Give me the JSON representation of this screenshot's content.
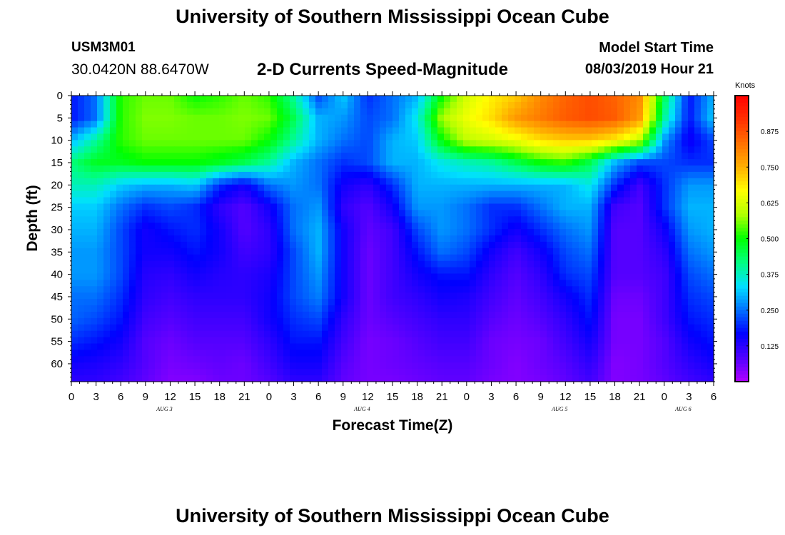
{
  "header": {
    "title": "University of Southern Mississippi Ocean Cube",
    "station_id": "USM3M01",
    "station_location": "30.0420N 88.6470W",
    "plot_title": "2-D Currents Speed-Magnitude",
    "model_start_label": "Model Start Time",
    "model_start_value": "08/03/2019 Hour 21"
  },
  "footer": {
    "title": "University of Southern Mississippi Ocean Cube"
  },
  "chart_data": {
    "type": "heatmap",
    "title": "2-D Currents Speed-Magnitude",
    "xlabel": "Forecast Time(Z)",
    "ylabel": "Depth (ft)",
    "x_tick_labels": [
      "0",
      "3",
      "6",
      "9",
      "12",
      "15",
      "18",
      "21",
      "0",
      "3",
      "6",
      "9",
      "12",
      "15",
      "18",
      "21",
      "0",
      "3",
      "6",
      "9",
      "12",
      "15",
      "18",
      "21",
      "0",
      "3",
      "6"
    ],
    "x_range_hours": [
      0,
      78
    ],
    "date_labels": [
      {
        "text": "AUG 3",
        "hour": 12
      },
      {
        "text": "AUG 4",
        "hour": 36
      },
      {
        "text": "AUG 5",
        "hour": 60
      },
      {
        "text": "AUG 6",
        "hour": 75
      }
    ],
    "y_tick_labels": [
      "0",
      "5",
      "10",
      "15",
      "20",
      "25",
      "30",
      "35",
      "40",
      "45",
      "50",
      "55",
      "60"
    ],
    "y_range_ft": [
      0,
      64
    ],
    "colorbar": {
      "unit": "Knots",
      "tick_labels": [
        "0.875",
        "0.750",
        "0.625",
        "0.500",
        "0.375",
        "0.250",
        "0.125"
      ],
      "tick_values": [
        0.875,
        0.75,
        0.625,
        0.5,
        0.375,
        0.25,
        0.125
      ],
      "range": [
        0.0,
        1.0
      ],
      "colors": [
        "#b000ff",
        "#5000ff",
        "#0000ff",
        "#0070ff",
        "#00e0ff",
        "#00ff80",
        "#00ff00",
        "#b0ff00",
        "#ffff00",
        "#ffb000",
        "#ff7000",
        "#ff3000",
        "#ff0000"
      ]
    },
    "speed_field_knots": {
      "description": "Approximate current speed (knots) sampled on a grid; rows = depth (ft), columns = forecast hour",
      "depths_ft": [
        0,
        5,
        10,
        15,
        20,
        25,
        30,
        35,
        40,
        45,
        50,
        55,
        60,
        64
      ],
      "hours": [
        0,
        3,
        6,
        9,
        12,
        15,
        18,
        21,
        24,
        27,
        30,
        33,
        36,
        39,
        42,
        45,
        48,
        51,
        54,
        57,
        60,
        63,
        66,
        69,
        72,
        75,
        78
      ],
      "values": [
        [
          0.18,
          0.25,
          0.52,
          0.55,
          0.55,
          0.5,
          0.52,
          0.55,
          0.52,
          0.4,
          0.22,
          0.32,
          0.2,
          0.25,
          0.3,
          0.5,
          0.62,
          0.68,
          0.72,
          0.8,
          0.85,
          0.88,
          0.85,
          0.8,
          0.45,
          0.18,
          0.3
        ],
        [
          0.18,
          0.25,
          0.52,
          0.56,
          0.56,
          0.55,
          0.55,
          0.56,
          0.55,
          0.45,
          0.3,
          0.28,
          0.22,
          0.25,
          0.35,
          0.58,
          0.65,
          0.7,
          0.78,
          0.82,
          0.86,
          0.88,
          0.86,
          0.78,
          0.4,
          0.18,
          0.32
        ],
        [
          0.3,
          0.4,
          0.52,
          0.55,
          0.55,
          0.55,
          0.55,
          0.55,
          0.5,
          0.4,
          0.3,
          0.25,
          0.22,
          0.3,
          0.32,
          0.5,
          0.6,
          0.62,
          0.65,
          0.7,
          0.72,
          0.72,
          0.68,
          0.6,
          0.28,
          0.15,
          0.22
        ],
        [
          0.42,
          0.48,
          0.48,
          0.5,
          0.5,
          0.5,
          0.48,
          0.45,
          0.4,
          0.3,
          0.25,
          0.2,
          0.22,
          0.3,
          0.3,
          0.35,
          0.38,
          0.4,
          0.45,
          0.5,
          0.52,
          0.45,
          0.3,
          0.22,
          0.22,
          0.2,
          0.2
        ],
        [
          0.38,
          0.38,
          0.32,
          0.3,
          0.3,
          0.32,
          0.2,
          0.15,
          0.25,
          0.28,
          0.25,
          0.15,
          0.12,
          0.2,
          0.3,
          0.3,
          0.3,
          0.3,
          0.3,
          0.3,
          0.3,
          0.35,
          0.2,
          0.1,
          0.2,
          0.28,
          0.28
        ],
        [
          0.32,
          0.32,
          0.25,
          0.2,
          0.22,
          0.2,
          0.12,
          0.08,
          0.15,
          0.25,
          0.28,
          0.12,
          0.08,
          0.15,
          0.28,
          0.28,
          0.25,
          0.2,
          0.2,
          0.25,
          0.3,
          0.3,
          0.1,
          0.08,
          0.2,
          0.3,
          0.3
        ],
        [
          0.3,
          0.3,
          0.22,
          0.15,
          0.18,
          0.2,
          0.15,
          0.08,
          0.12,
          0.25,
          0.3,
          0.15,
          0.07,
          0.1,
          0.22,
          0.28,
          0.25,
          0.2,
          0.15,
          0.2,
          0.25,
          0.28,
          0.08,
          0.08,
          0.15,
          0.28,
          0.3
        ],
        [
          0.28,
          0.28,
          0.22,
          0.15,
          0.15,
          0.18,
          0.15,
          0.1,
          0.12,
          0.22,
          0.3,
          0.15,
          0.06,
          0.1,
          0.18,
          0.25,
          0.22,
          0.15,
          0.1,
          0.15,
          0.22,
          0.25,
          0.08,
          0.08,
          0.12,
          0.25,
          0.28
        ],
        [
          0.28,
          0.28,
          0.22,
          0.13,
          0.12,
          0.15,
          0.13,
          0.12,
          0.14,
          0.22,
          0.28,
          0.15,
          0.06,
          0.1,
          0.15,
          0.18,
          0.18,
          0.12,
          0.08,
          0.12,
          0.2,
          0.22,
          0.08,
          0.08,
          0.1,
          0.22,
          0.25
        ],
        [
          0.25,
          0.25,
          0.2,
          0.12,
          0.1,
          0.12,
          0.12,
          0.12,
          0.15,
          0.22,
          0.26,
          0.15,
          0.06,
          0.1,
          0.12,
          0.15,
          0.14,
          0.1,
          0.07,
          0.1,
          0.15,
          0.2,
          0.06,
          0.06,
          0.1,
          0.2,
          0.22
        ],
        [
          0.24,
          0.22,
          0.18,
          0.1,
          0.08,
          0.1,
          0.1,
          0.1,
          0.15,
          0.2,
          0.22,
          0.12,
          0.06,
          0.08,
          0.1,
          0.12,
          0.12,
          0.08,
          0.06,
          0.08,
          0.12,
          0.18,
          0.05,
          0.05,
          0.1,
          0.18,
          0.2
        ],
        [
          0.2,
          0.18,
          0.15,
          0.08,
          0.06,
          0.08,
          0.08,
          0.08,
          0.12,
          0.18,
          0.18,
          0.1,
          0.05,
          0.06,
          0.08,
          0.1,
          0.1,
          0.06,
          0.05,
          0.06,
          0.1,
          0.15,
          0.05,
          0.05,
          0.08,
          0.15,
          0.18
        ],
        [
          0.15,
          0.14,
          0.12,
          0.08,
          0.05,
          0.06,
          0.07,
          0.06,
          0.1,
          0.15,
          0.15,
          0.08,
          0.05,
          0.06,
          0.07,
          0.08,
          0.08,
          0.06,
          0.04,
          0.06,
          0.08,
          0.12,
          0.04,
          0.05,
          0.08,
          0.12,
          0.15
        ],
        [
          0.12,
          0.12,
          0.1,
          0.07,
          0.04,
          0.04,
          0.06,
          0.06,
          0.08,
          0.12,
          0.12,
          0.07,
          0.05,
          0.05,
          0.06,
          0.07,
          0.07,
          0.05,
          0.04,
          0.05,
          0.07,
          0.1,
          0.04,
          0.05,
          0.07,
          0.1,
          0.12
        ]
      ]
    }
  }
}
